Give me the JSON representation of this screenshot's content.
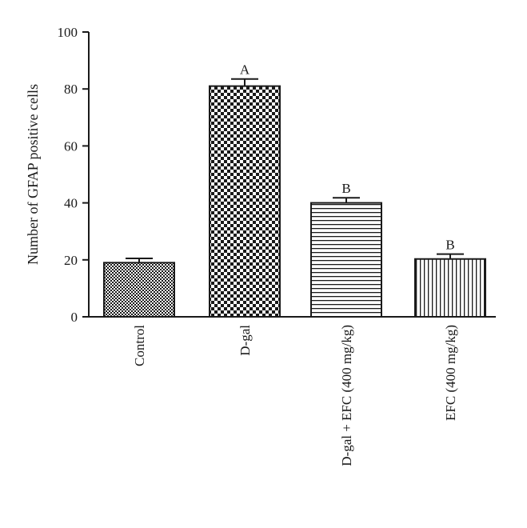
{
  "chart_data": {
    "type": "bar",
    "title": "",
    "ylabel": "Number of GFAP positive cells",
    "xlabel": "",
    "ylim": [
      0,
      100
    ],
    "yticks": [
      0,
      20,
      40,
      60,
      80,
      100
    ],
    "categories": [
      "Control",
      "D-gal",
      "D-gal + EFC (400 mg/kg)",
      "EFC (400 mg/kg)"
    ],
    "values": [
      19,
      81,
      40,
      20.3
    ],
    "errors": [
      1.5,
      2.5,
      1.8,
      1.7
    ],
    "significance": [
      "",
      "A",
      "B",
      "B"
    ],
    "patterns": [
      "fine-checker",
      "large-checker",
      "horizontal-lines",
      "vertical-lines"
    ],
    "bar_color": "#1a1a1a",
    "grid": false,
    "legend": "none"
  }
}
